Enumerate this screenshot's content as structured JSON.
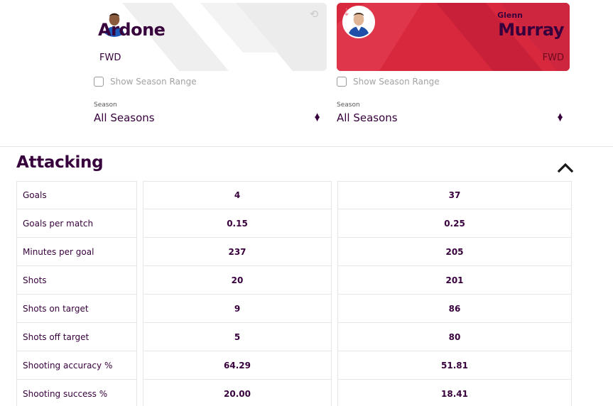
{
  "players": {
    "left": {
      "name": "Ardone",
      "position": "FWD",
      "show_season_range": "Show Season Range",
      "season_label": "Season",
      "season_value": "All Seasons",
      "card_color": "#ffffff",
      "icon": "swap-icon"
    },
    "right": {
      "first_name": "Glenn",
      "name": "Murray",
      "position": "FWD",
      "show_season_range": "Show Season Range",
      "season_label": "Season",
      "season_value": "All Seasons",
      "card_color": "#d8283d",
      "icon": "remove-icon"
    }
  },
  "section": {
    "title": "Attacking",
    "toggle_icon": "chevron-up-icon"
  },
  "stats": [
    {
      "label": "Goals",
      "left": "4",
      "right": "37"
    },
    {
      "label": "Goals per match",
      "left": "0.15",
      "right": "0.25"
    },
    {
      "label": "Minutes per goal",
      "left": "237",
      "right": "205"
    },
    {
      "label": "Shots",
      "left": "20",
      "right": "201"
    },
    {
      "label": "Shots on target",
      "left": "9",
      "right": "86"
    },
    {
      "label": "Shots off target",
      "left": "5",
      "right": "80"
    },
    {
      "label": "Shooting accuracy %",
      "left": "64.29",
      "right": "51.81"
    },
    {
      "label": "Shooting success %",
      "left": "20.00",
      "right": "18.41"
    }
  ],
  "colors": {
    "brand": "#37003c",
    "accent_red": "#d8283d"
  }
}
